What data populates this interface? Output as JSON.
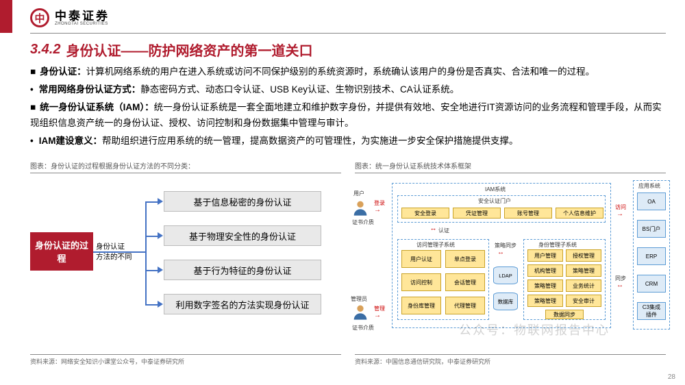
{
  "brand": {
    "cn": "中泰证券",
    "en": "ZHONGTAI SECURITIES",
    "mark": "中"
  },
  "section": {
    "num": "3.4.2",
    "title": "身份认证——防护网络资产的第一道关口"
  },
  "bullets": [
    {
      "style": "sq",
      "bold": "身份认证：",
      "text": "计算机网络系统的用户在进入系统或访问不同保护级别的系统资源时，系统确认该用户的身份是否真实、合法和唯一的过程。"
    },
    {
      "style": "dot",
      "bold": "常用网络身份认证方式：",
      "text": "静态密码方式、动态口令认证、USB Key认证、生物识别技术、CA认证系统。"
    },
    {
      "style": "sq",
      "bold": "统一身份认证系统（IAM）：",
      "text": "统一身份认证系统是一套全面地建立和维护数字身份，并提供有效地、安全地进行IT资源访问的业务流程和管理手段，从而实现组织信息资产统一的身份认证、授权、访问控制和身份数据集中管理与审计。"
    },
    {
      "style": "dot",
      "bold": "IAM建设意义：",
      "text": "帮助组织进行应用系统的统一管理，提高数据资产的可管理性，为实施进一步安全保护措施提供支撑。"
    }
  ],
  "leftChart": {
    "label": "图表：身份认证的过程根据身份认证方法的不同分类：",
    "root": "身份认证的过程",
    "mid1": "身份认证",
    "mid2": "方法的不同",
    "items": [
      "基于信息秘密的身份认证",
      "基于物理安全性的身份认证",
      "基于行为特征的身份认证",
      "利用数字签名的方法实现身份认证"
    ],
    "src": "资料来源：网络安全知识小课堂公众号，中泰证券研究所",
    "colors": {
      "root_bg": "#b01c2e",
      "line": "#4472c4",
      "box_bg": "#e9e9e9",
      "box_border": "#bbbbbb"
    }
  },
  "rightChart": {
    "label": "图表：统一身份认证系统技术体系框架",
    "src": "资料来源：中国信息通信研究院，中泰证券研究所",
    "user": "用户",
    "admin": "管理员",
    "login": "登录",
    "manage": "管理",
    "cert": "证书介质",
    "iam_title": "IAM系统",
    "portal_title": "安全认证门户",
    "portal": [
      "安全登录",
      "凭证管理",
      "账号管理",
      "个人信息维护"
    ],
    "access_title": "访问管理子系统",
    "access": [
      "用户认证",
      "单点登录",
      "访问控制",
      "会话管理",
      "身份库管理",
      "代理管理"
    ],
    "id_title": "身份管理子系统",
    "id_boxes": [
      "用户管理",
      "授权管理",
      "机构管理",
      "策略管理",
      "策略管理",
      "业务统计",
      "策略管理",
      "安全审计",
      "数据同步"
    ],
    "midlabels": {
      "sync": "策略同步",
      "auth": "认证",
      "visit": "访问",
      "dsync": "同步"
    },
    "ldap": "LDAP",
    "db": "数据库",
    "apps_title": "应用系统",
    "apps": [
      "OA",
      "BS门户",
      "ERP",
      "CRM",
      "C3集成插件"
    ],
    "colors": {
      "dash": "#5b9bd5",
      "yellow_bg": "#ffe699",
      "yellow_border": "#c9a227",
      "blue_bg": "#deebf7",
      "blue_border": "#5b9bd5",
      "arrow": "#c00000"
    }
  },
  "pagenum": "28",
  "watermark": "公众号：物联网报告中心"
}
